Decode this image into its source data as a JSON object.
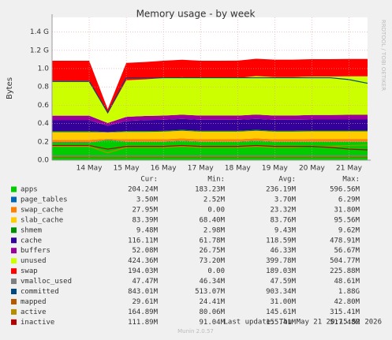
{
  "chart_data": {
    "type": "area",
    "title": "Memory usage - by week",
    "y_label": "Bytes",
    "side_label": "RRDTOOL / TOBI OETIKER",
    "footer": "Last update: Thu May 21 20:15:52 2026",
    "version": "Munin 2.0.57",
    "legend_columns": [
      "Cur:",
      "Min:",
      "Avg:",
      "Max:"
    ],
    "categories": [
      null,
      null,
      "14 May",
      null,
      "15 May",
      null,
      "16 May",
      null,
      "17 May",
      null,
      "18 May",
      null,
      "19 May",
      null,
      "20 May",
      null,
      "21 May",
      null
    ],
    "ylim": [
      0,
      1.56
    ],
    "yticks": [
      {
        "value": 0,
        "label": "0.0"
      },
      0.2,
      0.4,
      0.6,
      0.8,
      {
        "value": 1.0,
        "label": "1.0"
      },
      {
        "value": 1.2,
        "label": "1.2 G"
      },
      {
        "value": 1.4,
        "label": "1.4 G"
      }
    ],
    "grid": true,
    "series": [
      {
        "name": "apps",
        "kind": "area",
        "color": "#00cc00",
        "cur": "204.24M",
        "min": "183.23M",
        "avg": "236.19M",
        "max": "596.56M",
        "values": [
          0.19,
          0.19,
          0.19,
          0.22,
          0.2,
          0.2,
          0.2,
          0.21,
          0.2,
          0.2,
          0.2,
          0.21,
          0.2,
          0.2,
          0.2,
          0.2,
          0.2,
          0.2
        ]
      },
      {
        "name": "page_tables",
        "kind": "area",
        "color": "#0066b3",
        "cur": "3.50M",
        "min": "2.52M",
        "avg": "3.70M",
        "max": "6.29M",
        "values": [
          0.0035,
          0.0035,
          0.0035,
          0.0035,
          0.0035,
          0.0035,
          0.0035,
          0.0035,
          0.0035,
          0.0035,
          0.0035,
          0.0035,
          0.0035,
          0.0035,
          0.0035,
          0.0035,
          0.0035,
          0.0035
        ]
      },
      {
        "name": "swap_cache",
        "kind": "area",
        "color": "#ff8000",
        "cur": "27.95M",
        "min": "0.00",
        "avg": "23.32M",
        "max": "31.80M",
        "values": [
          0.028,
          0.028,
          0.028,
          0.01,
          0.025,
          0.025,
          0.025,
          0.025,
          0.025,
          0.025,
          0.025,
          0.025,
          0.025,
          0.025,
          0.028,
          0.028,
          0.028,
          0.028
        ]
      },
      {
        "name": "slab_cache",
        "kind": "area",
        "color": "#ffcc00",
        "cur": "83.39M",
        "min": "68.40M",
        "avg": "83.76M",
        "max": "95.56M",
        "values": [
          0.085,
          0.085,
          0.085,
          0.07,
          0.08,
          0.08,
          0.083,
          0.083,
          0.083,
          0.083,
          0.083,
          0.083,
          0.083,
          0.083,
          0.083,
          0.083,
          0.083,
          0.083
        ]
      },
      {
        "name": "shmem",
        "kind": "area",
        "color": "#008f00",
        "cur": "9.48M",
        "min": "2.98M",
        "avg": "9.43M",
        "max": "9.62M",
        "values": [
          0.009,
          0.009,
          0.009,
          0.003,
          0.009,
          0.009,
          0.009,
          0.009,
          0.009,
          0.009,
          0.009,
          0.009,
          0.009,
          0.009,
          0.009,
          0.009,
          0.009,
          0.009
        ]
      },
      {
        "name": "cache",
        "kind": "area",
        "color": "#330099",
        "cur": "116.11M",
        "min": "61.78M",
        "avg": "118.59M",
        "max": "478.91M",
        "values": [
          0.12,
          0.12,
          0.12,
          0.07,
          0.11,
          0.12,
          0.12,
          0.12,
          0.12,
          0.12,
          0.12,
          0.12,
          0.12,
          0.12,
          0.12,
          0.12,
          0.12,
          0.12
        ]
      },
      {
        "name": "buffers",
        "kind": "area",
        "color": "#990099",
        "cur": "52.08M",
        "min": "26.75M",
        "avg": "46.33M",
        "max": "56.67M",
        "values": [
          0.05,
          0.05,
          0.05,
          0.03,
          0.045,
          0.045,
          0.046,
          0.046,
          0.046,
          0.046,
          0.047,
          0.047,
          0.047,
          0.047,
          0.05,
          0.05,
          0.052,
          0.052
        ]
      },
      {
        "name": "unused",
        "kind": "area",
        "color": "#ccff00",
        "cur": "424.36M",
        "min": "73.20M",
        "avg": "399.78M",
        "max": "504.77M",
        "values": [
          0.38,
          0.38,
          0.38,
          0.1,
          0.4,
          0.4,
          0.41,
          0.41,
          0.41,
          0.41,
          0.41,
          0.42,
          0.42,
          0.42,
          0.42,
          0.42,
          0.42,
          0.42
        ]
      },
      {
        "name": "swap",
        "kind": "area",
        "color": "#ff0000",
        "cur": "194.03M",
        "min": "0.00",
        "avg": "189.03M",
        "max": "225.88M",
        "values": [
          0.22,
          0.22,
          0.22,
          0.05,
          0.19,
          0.19,
          0.19,
          0.19,
          0.19,
          0.19,
          0.19,
          0.19,
          0.19,
          0.19,
          0.19,
          0.19,
          0.19,
          0.19
        ]
      },
      {
        "name": "vmalloc_used",
        "kind": "line",
        "color": "#7f7f7f",
        "cur": "47.47M",
        "min": "46.34M",
        "avg": "47.59M",
        "max": "48.61M",
        "values": [
          0.047,
          0.047,
          0.047,
          0.047,
          0.047,
          0.047,
          0.047,
          0.047,
          0.047,
          0.047,
          0.047,
          0.047,
          0.047,
          0.047,
          0.047,
          0.047,
          0.047,
          0.047
        ]
      },
      {
        "name": "committed",
        "kind": "line",
        "color": "#00487d",
        "cur": "843.01M",
        "min": "513.07M",
        "avg": "903.34M",
        "max": "1.88G",
        "values": [
          0.86,
          0.86,
          0.86,
          0.52,
          0.9,
          0.9,
          0.9,
          0.9,
          0.9,
          0.9,
          0.9,
          0.9,
          0.9,
          0.9,
          0.9,
          0.9,
          0.88,
          0.84
        ]
      },
      {
        "name": "mapped",
        "kind": "line",
        "color": "#b35a00",
        "cur": "29.61M",
        "min": "24.41M",
        "avg": "31.00M",
        "max": "42.80M",
        "values": [
          0.03,
          0.03,
          0.03,
          0.025,
          0.03,
          0.03,
          0.03,
          0.03,
          0.03,
          0.03,
          0.03,
          0.03,
          0.03,
          0.03,
          0.03,
          0.03,
          0.03,
          0.03
        ]
      },
      {
        "name": "active",
        "kind": "line",
        "color": "#b38f00",
        "cur": "164.89M",
        "min": "80.06M",
        "avg": "145.61M",
        "max": "315.41M",
        "values": [
          0.15,
          0.15,
          0.15,
          0.08,
          0.14,
          0.14,
          0.14,
          0.15,
          0.14,
          0.14,
          0.14,
          0.15,
          0.14,
          0.14,
          0.15,
          0.15,
          0.16,
          0.165
        ]
      },
      {
        "name": "inactive",
        "kind": "line",
        "color": "#b30000",
        "cur": "111.89M",
        "min": "91.04M",
        "avg": "155.41M",
        "max": "517.48M",
        "values": [
          0.16,
          0.16,
          0.16,
          0.12,
          0.15,
          0.15,
          0.15,
          0.16,
          0.15,
          0.15,
          0.15,
          0.16,
          0.15,
          0.15,
          0.15,
          0.14,
          0.12,
          0.112
        ]
      }
    ]
  }
}
